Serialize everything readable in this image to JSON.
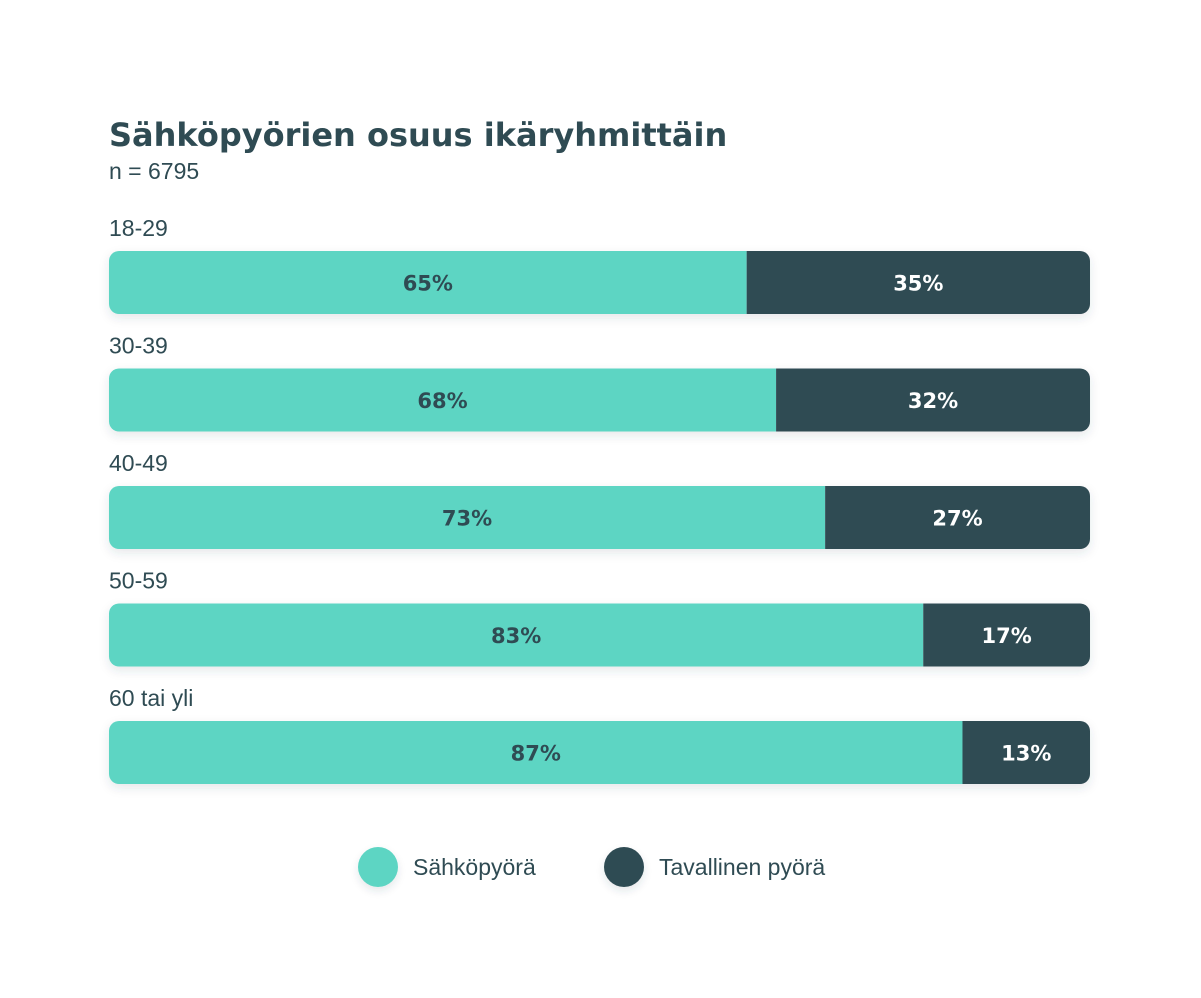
{
  "chart_data": {
    "type": "bar",
    "orientation": "horizontal",
    "stacked": true,
    "normalized": true,
    "title": "Sähköpyörien osuus ikäryhmittäin",
    "subtitle": "n = 6795",
    "categories": [
      "18-29",
      "30-39",
      "40-49",
      "50-59",
      "60 tai yli"
    ],
    "series": [
      {
        "name": "Sähköpyörä",
        "values": [
          65,
          68,
          73,
          83,
          87
        ],
        "color": "#5dd5c3",
        "label_color": "#2f4b53"
      },
      {
        "name": "Tavallinen pyörä",
        "values": [
          35,
          32,
          27,
          17,
          13
        ],
        "color": "#2f4b53",
        "label_color": "#ffffff"
      }
    ],
    "value_suffix": "%",
    "xlim": [
      0,
      100
    ],
    "grid": false,
    "legend_position": "bottom-center"
  }
}
